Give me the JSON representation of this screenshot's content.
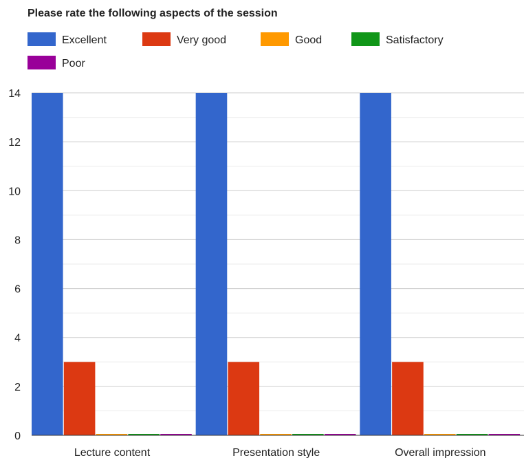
{
  "chart_data": {
    "type": "bar",
    "title": "Please rate the following aspects of the session",
    "categories": [
      "Lecture content",
      "Presentation style",
      "Overall impression"
    ],
    "series": [
      {
        "name": "Excellent",
        "color": "#3366cc",
        "values": [
          14,
          14,
          14
        ]
      },
      {
        "name": "Very good",
        "color": "#dc3912",
        "values": [
          3,
          3,
          3
        ]
      },
      {
        "name": "Good",
        "color": "#ff9900",
        "values": [
          0,
          0,
          0
        ]
      },
      {
        "name": "Satisfactory",
        "color": "#109618",
        "values": [
          0,
          0,
          0
        ]
      },
      {
        "name": "Poor",
        "color": "#990099",
        "values": [
          0,
          0,
          0
        ]
      }
    ],
    "yticks": [
      "0",
      "2",
      "4",
      "6",
      "8",
      "10",
      "12",
      "14"
    ],
    "ylim": [
      0,
      14
    ],
    "grid": true,
    "legend_position": "top",
    "xlabel": "",
    "ylabel": ""
  }
}
